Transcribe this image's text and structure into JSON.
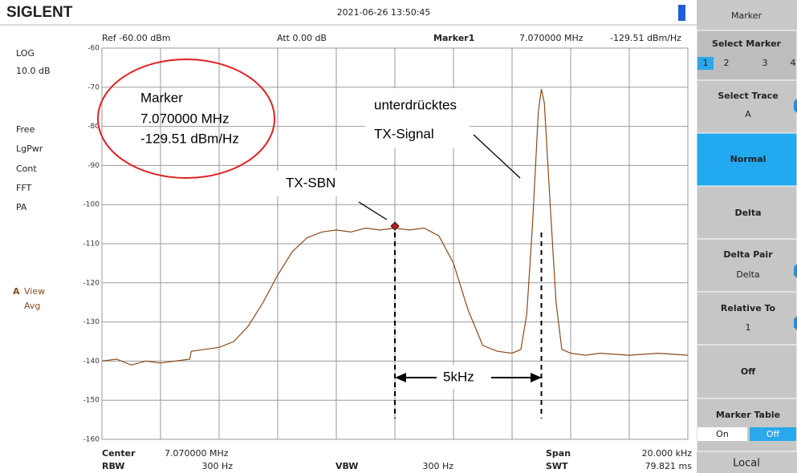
{
  "header": {
    "brand": "SIGLENT",
    "datetime": "2021-06-26  13:50:45"
  },
  "left_panel": {
    "scale": [
      "LOG",
      "10.0 dB"
    ],
    "modes": [
      "Free",
      "LgPwr",
      "Cont",
      "FFT",
      "PA"
    ],
    "trace": "A",
    "trace_modes": [
      "View",
      "Avg"
    ]
  },
  "top_bar": {
    "ref": "Ref -60.00 dBm",
    "att": "Att  0.00 dB",
    "marker": "Marker1",
    "marker_freq": "7.070000 MHz",
    "marker_value": "-129.51 dBm/Hz"
  },
  "bottom_bar": {
    "center_label": "Center",
    "center": "7.070000 MHz",
    "span_label": "Span",
    "span": "20.000 kHz",
    "rbw_label": "RBW",
    "rbw": "300 Hz",
    "vbw_label": "VBW",
    "vbw": "300 Hz",
    "swt_label": "SWT",
    "swt": "79.821 ms"
  },
  "annotations": {
    "marker_box": [
      "Marker",
      "7.070000 MHz",
      "-129.51 dBm/Hz"
    ],
    "signal": [
      "unterdrücktes",
      "TX-Signal"
    ],
    "sbn": "TX-SBN",
    "spacing": "5kHz"
  },
  "menu": {
    "title": "Marker",
    "select_marker": {
      "label": "Select Marker",
      "options": [
        "1",
        "2",
        "3",
        "4"
      ]
    },
    "select_trace": {
      "label": "Select Trace",
      "value": "A"
    },
    "normal": "Normal",
    "delta": "Delta",
    "delta_pair": {
      "label": "Delta Pair",
      "value": "Delta"
    },
    "relative_to": {
      "label": "Relative To",
      "value": "1"
    },
    "off": "Off",
    "marker_table": {
      "label": "Marker Table",
      "options": [
        "On",
        "Off"
      ]
    },
    "local": "Local"
  },
  "chart_data": {
    "type": "line",
    "color": "#8b4a1c",
    "xlim": [
      7060,
      7080
    ],
    "xgrid": [
      7060,
      7062,
      7064,
      7066,
      7068,
      7070,
      7072,
      7074,
      7076,
      7078,
      7080
    ],
    "ylim": [
      -160,
      -60
    ],
    "yticks": [
      -60,
      -70,
      -80,
      -90,
      -100,
      -110,
      -120,
      -130,
      -140,
      -150,
      -160
    ],
    "x": [
      7060,
      7060.5,
      7061,
      7061.5,
      7062,
      7062.5,
      7063,
      7063.05,
      7063.5,
      7064,
      7064.5,
      7065,
      7065.5,
      7066,
      7066.5,
      7067,
      7067.5,
      7068,
      7068.5,
      7069,
      7069.5,
      7070,
      7070.5,
      7071,
      7071.5,
      7072,
      7072.5,
      7073,
      7073.5,
      7074,
      7074.3,
      7074.5,
      7074.7,
      7074.9,
      7075,
      7075.1,
      7075.3,
      7075.5,
      7075.7,
      7076,
      7076.5,
      7077,
      7078,
      7079,
      7080
    ],
    "values": [
      -140,
      -139.5,
      -141,
      -140,
      -140.5,
      -140,
      -139.5,
      -137.5,
      -137,
      -136.5,
      -135,
      -131,
      -125,
      -118,
      -112,
      -108.5,
      -107,
      -106.5,
      -107,
      -106,
      -106.5,
      -106,
      -106.5,
      -106,
      -108,
      -115,
      -127,
      -136,
      -137.5,
      -138,
      -137,
      -128,
      -105,
      -76,
      -70.5,
      -74,
      -100,
      -125,
      -137,
      -138,
      -138.5,
      -138,
      -138.5,
      -138,
      -138.5
    ],
    "marker": {
      "x": 7070,
      "value": -105.5
    },
    "dashed_lines": [
      7070,
      7075
    ]
  }
}
